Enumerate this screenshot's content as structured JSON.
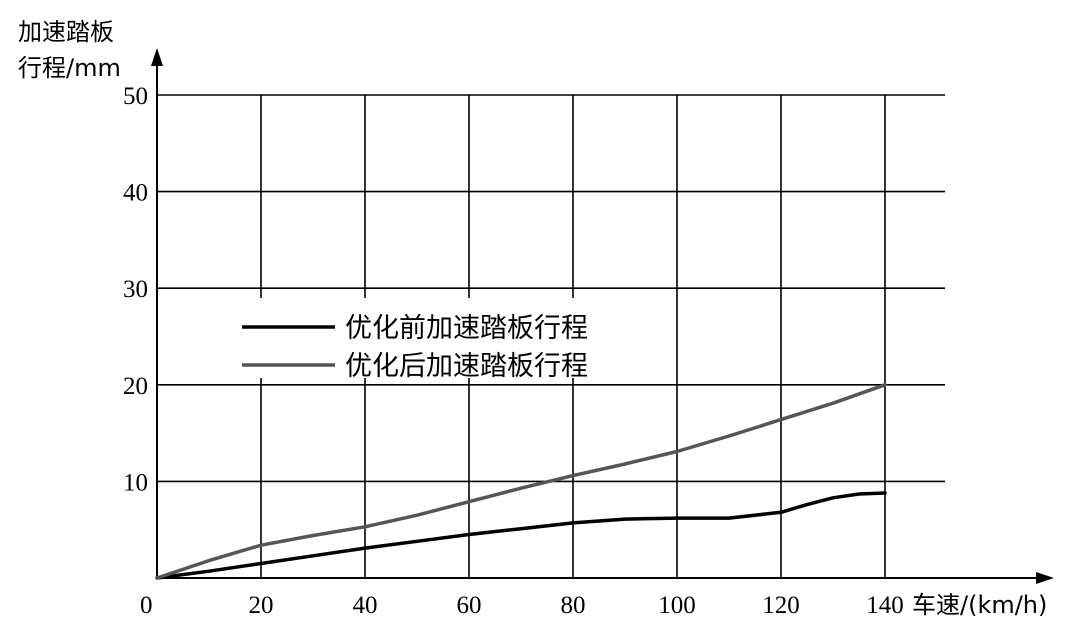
{
  "chart_data": {
    "type": "line",
    "title": "",
    "xlabel": "车速/(km/h)",
    "ylabel_line1": "加速踏板",
    "ylabel_line2": "行程/mm",
    "xlim": [
      0,
      140
    ],
    "ylim": [
      0,
      50
    ],
    "x_ticks": [
      0,
      20,
      40,
      60,
      80,
      100,
      120,
      140
    ],
    "y_ticks": [
      10,
      20,
      30,
      40,
      50
    ],
    "origin_label": "0",
    "grid": true,
    "legend_position": "center-left",
    "series": [
      {
        "name": "优化前加速踏板行程",
        "color": "#000000",
        "x": [
          0,
          10,
          20,
          30,
          40,
          50,
          60,
          70,
          80,
          90,
          100,
          110,
          120,
          125,
          130,
          135,
          140
        ],
        "y": [
          0,
          0.7,
          1.5,
          2.3,
          3.1,
          3.8,
          4.5,
          5.1,
          5.7,
          6.1,
          6.2,
          6.2,
          6.8,
          7.6,
          8.3,
          8.7,
          8.8
        ]
      },
      {
        "name": "优化后加速踏板行程",
        "color": "#555555",
        "x": [
          0,
          10,
          20,
          30,
          40,
          50,
          60,
          70,
          80,
          90,
          100,
          110,
          120,
          130,
          140
        ],
        "y": [
          0,
          1.8,
          3.4,
          4.4,
          5.3,
          6.5,
          7.9,
          9.3,
          10.6,
          11.8,
          13.1,
          14.7,
          16.4,
          18.1,
          20.0
        ]
      }
    ]
  }
}
